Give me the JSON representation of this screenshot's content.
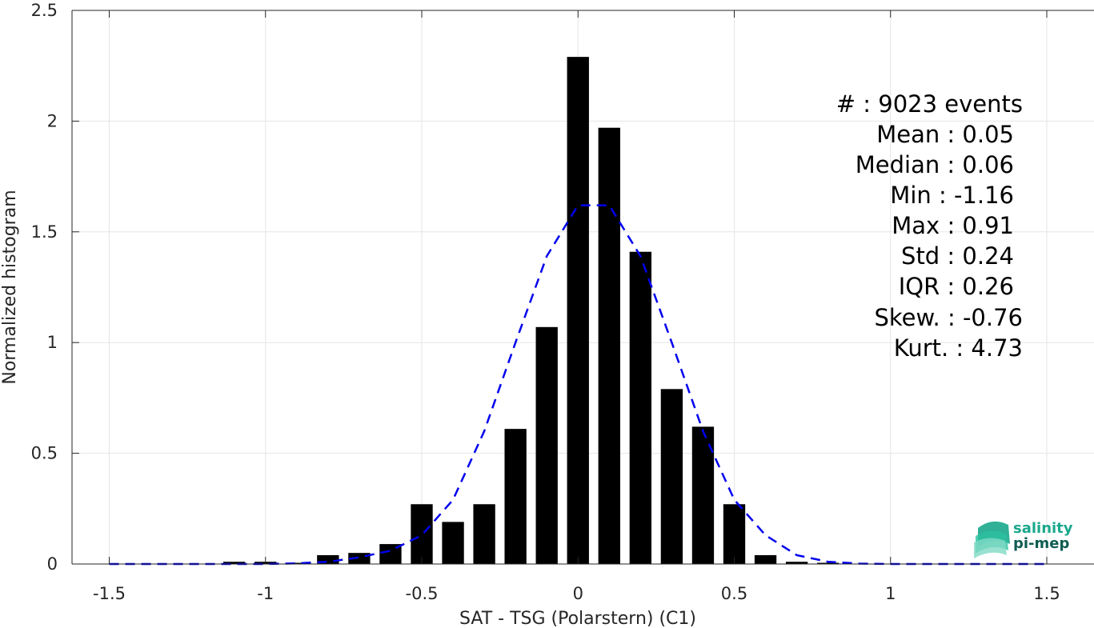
{
  "chart_data": {
    "type": "bar",
    "xlabel": "SAT - TSG (Polarstern) (C1)",
    "ylabel": "Normalized histogram",
    "xlim": [
      -1.6,
      1.6
    ],
    "ylim": [
      0,
      2.5
    ],
    "xticks": [
      -1.5,
      -1,
      -0.5,
      0,
      0.5,
      1,
      1.5
    ],
    "xtick_labels": [
      "-1.5",
      "-1",
      "-0.5",
      "0",
      "0.5",
      "1",
      "1.5"
    ],
    "yticks": [
      0,
      0.5,
      1,
      1.5,
      2,
      2.5
    ],
    "ytick_labels": [
      "0",
      "0.5",
      "1",
      "1.5",
      "2",
      "2.5"
    ],
    "grid": true,
    "bar_width": 0.07,
    "bar_color": "#000000",
    "bars": {
      "x": [
        -1.5,
        -1.4,
        -1.3,
        -1.2,
        -1.1,
        -1.0,
        -0.9,
        -0.8,
        -0.7,
        -0.6,
        -0.5,
        -0.4,
        -0.3,
        -0.2,
        -0.1,
        0.0,
        0.1,
        0.2,
        0.3,
        0.4,
        0.5,
        0.6,
        0.7,
        0.8,
        0.9,
        1.0,
        1.1,
        1.2,
        1.3,
        1.4,
        1.5
      ],
      "values": [
        0,
        0,
        0,
        0,
        0.01,
        0.01,
        0.005,
        0.04,
        0.05,
        0.09,
        0.27,
        0.19,
        0.27,
        0.61,
        1.07,
        2.29,
        1.97,
        1.41,
        0.79,
        0.62,
        0.27,
        0.04,
        0.01,
        0.003,
        0,
        0,
        0,
        0,
        0,
        0,
        0
      ]
    },
    "fit_line": {
      "style": "dashed",
      "color": "#0000ee",
      "x": [
        -1.5,
        -1.4,
        -1.3,
        -1.2,
        -1.1,
        -1.0,
        -0.9,
        -0.8,
        -0.7,
        -0.6,
        -0.5,
        -0.4,
        -0.3,
        -0.2,
        -0.1,
        0.0,
        0.1,
        0.2,
        0.3,
        0.4,
        0.5,
        0.6,
        0.7,
        0.8,
        0.9,
        1.0,
        1.1,
        1.2,
        1.3,
        1.4,
        1.5
      ],
      "y": [
        0,
        0,
        0,
        0,
        0,
        0,
        0.003,
        0.01,
        0.03,
        0.06,
        0.13,
        0.29,
        0.6,
        1.0,
        1.39,
        1.62,
        1.62,
        1.39,
        1.0,
        0.6,
        0.29,
        0.13,
        0.04,
        0.01,
        0.002,
        0,
        0,
        0,
        0,
        0,
        0
      ]
    }
  },
  "stats": [
    {
      "label": "#  : 9023 events"
    },
    {
      "label": "Mean : 0.05"
    },
    {
      "label": "Median : 0.06"
    },
    {
      "label": "Min : -1.16"
    },
    {
      "label": "Max : 0.91"
    },
    {
      "label": "Std : 0.24"
    },
    {
      "label": "IQR : 0.26"
    },
    {
      "label": "Skew. : -0.76"
    },
    {
      "label": "Kurt. : 4.73"
    }
  ],
  "logo": {
    "line1": "salinity",
    "line2": "pi-mep",
    "color1": "#1aa88c",
    "color2": "#0e5c52"
  }
}
